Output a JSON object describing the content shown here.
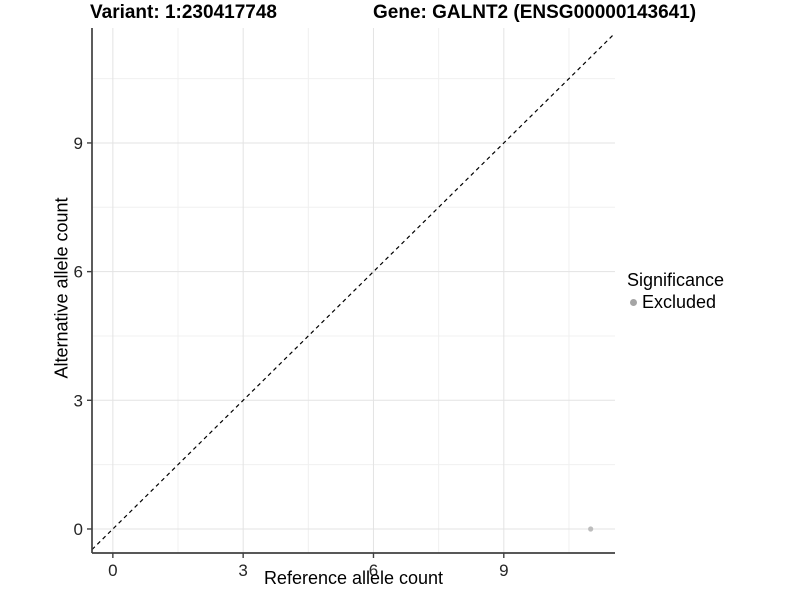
{
  "chart_data": {
    "type": "scatter",
    "title_left": "Variant: 1:230417748",
    "title_right": "Gene: GALNT2 (ENSG00000143641)",
    "xlabel": "Reference allele count",
    "ylabel": "Alternative allele count",
    "xlim": [
      -0.48,
      11.56
    ],
    "ylim": [
      -0.56,
      11.68
    ],
    "x_major_ticks": [
      0,
      3,
      6,
      9
    ],
    "y_major_ticks": [
      0,
      3,
      6,
      9
    ],
    "x_minor_ticks": [
      1.5,
      4.5,
      7.5,
      10.5
    ],
    "y_minor_ticks": [
      1.5,
      4.5,
      7.5,
      10.5
    ],
    "grid": true,
    "identity_line": {
      "show": true,
      "style": "dashed",
      "color": "#000000"
    },
    "series": [
      {
        "name": "Excluded",
        "color": "#bdbdbd",
        "points": [
          {
            "x": 11,
            "y": 0
          }
        ]
      }
    ],
    "legend": {
      "title": "Significance",
      "position": "right",
      "items": [
        {
          "label": "Excluded",
          "color": "#a5a5a5"
        }
      ]
    },
    "colors": {
      "background": "#ffffff",
      "grid_major": "#e3e3e3",
      "grid_minor": "#f0f0f0",
      "axis_line": "#404040",
      "tick_label": "#262626",
      "point": "#bdbdbd"
    }
  }
}
